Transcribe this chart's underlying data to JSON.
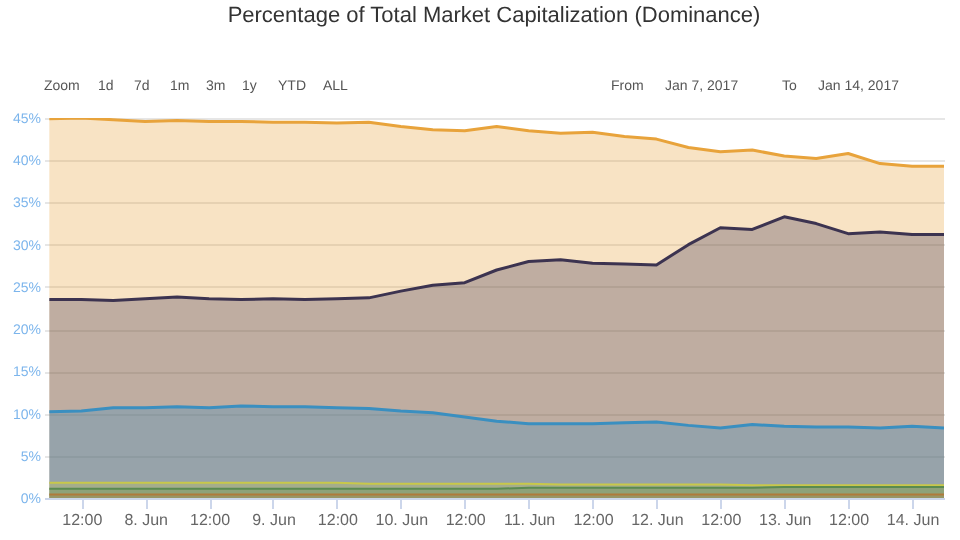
{
  "chart_data": {
    "type": "area",
    "title": "Percentage of Total Market Capitalization (Dominance)",
    "annotations": [
      "Zoom",
      "1d",
      "7d",
      "1m",
      "3m",
      "1y",
      "YTD",
      "ALL",
      "From",
      "Jan 7, 2017",
      "To",
      "Jan 14, 2017"
    ],
    "x": [
      "2017-06-07T06:00",
      "2017-06-07T12:00",
      "2017-06-07T18:00",
      "2017-06-08T00:00",
      "2017-06-08T06:00",
      "2017-06-08T12:00",
      "2017-06-08T18:00",
      "2017-06-09T00:00",
      "2017-06-09T06:00",
      "2017-06-09T12:00",
      "2017-06-09T18:00",
      "2017-06-10T00:00",
      "2017-06-10T06:00",
      "2017-06-10T12:00",
      "2017-06-10T18:00",
      "2017-06-11T00:00",
      "2017-06-11T06:00",
      "2017-06-11T12:00",
      "2017-06-11T18:00",
      "2017-06-12T00:00",
      "2017-06-12T06:00",
      "2017-06-12T12:00",
      "2017-06-12T18:00",
      "2017-06-13T00:00",
      "2017-06-13T06:00",
      "2017-06-13T12:00",
      "2017-06-13T18:00",
      "2017-06-14T00:00",
      "2017-06-14T06:00"
    ],
    "series": [
      {
        "color": "#e8a33b",
        "values": [
          44.9,
          45.0,
          44.8,
          44.6,
          44.7,
          44.6,
          44.6,
          44.5,
          44.5,
          44.4,
          44.5,
          44.0,
          43.6,
          43.5,
          44.0,
          43.5,
          43.2,
          43.3,
          42.8,
          42.5,
          41.5,
          41.0,
          41.2,
          40.5,
          40.2,
          40.8,
          39.6,
          39.3,
          39.3
        ]
      },
      {
        "color": "#3c3350",
        "values": [
          23.5,
          23.5,
          23.4,
          23.6,
          23.8,
          23.6,
          23.5,
          23.6,
          23.5,
          23.6,
          23.7,
          24.5,
          25.2,
          25.5,
          27.0,
          28.0,
          28.2,
          27.8,
          27.7,
          27.6,
          30.0,
          32.0,
          31.8,
          33.3,
          32.5,
          31.3,
          31.5,
          31.2,
          31.2
        ]
      },
      {
        "color": "#3a8fc0",
        "values": [
          10.2,
          10.3,
          10.7,
          10.7,
          10.8,
          10.7,
          10.9,
          10.8,
          10.8,
          10.7,
          10.6,
          10.3,
          10.1,
          9.6,
          9.1,
          8.8,
          8.8,
          8.8,
          8.9,
          9.0,
          8.6,
          8.3,
          8.7,
          8.5,
          8.4,
          8.4,
          8.3,
          8.5,
          8.3
        ]
      },
      {
        "color": "#c8c84a",
        "values": [
          1.8,
          1.8,
          1.8,
          1.8,
          1.8,
          1.8,
          1.8,
          1.8,
          1.8,
          1.8,
          1.7,
          1.7,
          1.7,
          1.7,
          1.7,
          1.7,
          1.6,
          1.6,
          1.6,
          1.6,
          1.6,
          1.6,
          1.5,
          1.5,
          1.5,
          1.5,
          1.5,
          1.5,
          1.5
        ]
      },
      {
        "color": "#5a8a50",
        "values": [
          1.1,
          1.1,
          1.1,
          1.1,
          1.1,
          1.1,
          1.1,
          1.1,
          1.1,
          1.1,
          1.1,
          1.1,
          1.1,
          1.1,
          1.1,
          1.2,
          1.2,
          1.2,
          1.2,
          1.2,
          1.2,
          1.2,
          1.2,
          1.3,
          1.3,
          1.3,
          1.3,
          1.3,
          1.3
        ]
      },
      {
        "color": "#b07a3a",
        "values": [
          0.4,
          0.4,
          0.4,
          0.4,
          0.4,
          0.4,
          0.4,
          0.4,
          0.4,
          0.4,
          0.4,
          0.4,
          0.4,
          0.4,
          0.4,
          0.4,
          0.4,
          0.4,
          0.4,
          0.4,
          0.4,
          0.4,
          0.4,
          0.4,
          0.4,
          0.4,
          0.4,
          0.4,
          0.4
        ]
      }
    ],
    "xlim": [
      "2017-06-07T05:00",
      "2017-06-14T06:00"
    ],
    "xticks": [
      {
        "value": "2017-06-07T12:00",
        "label": "12:00"
      },
      {
        "value": "2017-06-08T00:00",
        "label": "8. Jun"
      },
      {
        "value": "2017-06-08T12:00",
        "label": "12:00"
      },
      {
        "value": "2017-06-09T00:00",
        "label": "9. Jun"
      },
      {
        "value": "2017-06-09T12:00",
        "label": "12:00"
      },
      {
        "value": "2017-06-10T00:00",
        "label": "10. Jun"
      },
      {
        "value": "2017-06-10T12:00",
        "label": "12:00"
      },
      {
        "value": "2017-06-11T00:00",
        "label": "11. Jun"
      },
      {
        "value": "2017-06-11T12:00",
        "label": "12:00"
      },
      {
        "value": "2017-06-12T00:00",
        "label": "12. Jun"
      },
      {
        "value": "2017-06-12T12:00",
        "label": "12:00"
      },
      {
        "value": "2017-06-13T00:00",
        "label": "13. Jun"
      },
      {
        "value": "2017-06-13T12:00",
        "label": "12:00"
      },
      {
        "value": "2017-06-14T00:00",
        "label": "14. Jun"
      }
    ],
    "ylim": [
      0,
      45
    ],
    "yticks": [
      {
        "value": 0,
        "label": "0%"
      },
      {
        "value": 5,
        "label": "5%"
      },
      {
        "value": 10,
        "label": "10%"
      },
      {
        "value": 15,
        "label": "15%"
      },
      {
        "value": 20,
        "label": "20%"
      },
      {
        "value": 25,
        "label": "25%"
      },
      {
        "value": 30,
        "label": "30%"
      },
      {
        "value": 35,
        "label": "35%"
      },
      {
        "value": 40,
        "label": "40%"
      },
      {
        "value": 45,
        "label": "45%"
      }
    ],
    "grid": "y",
    "marker": "none",
    "line_style": "solid"
  }
}
